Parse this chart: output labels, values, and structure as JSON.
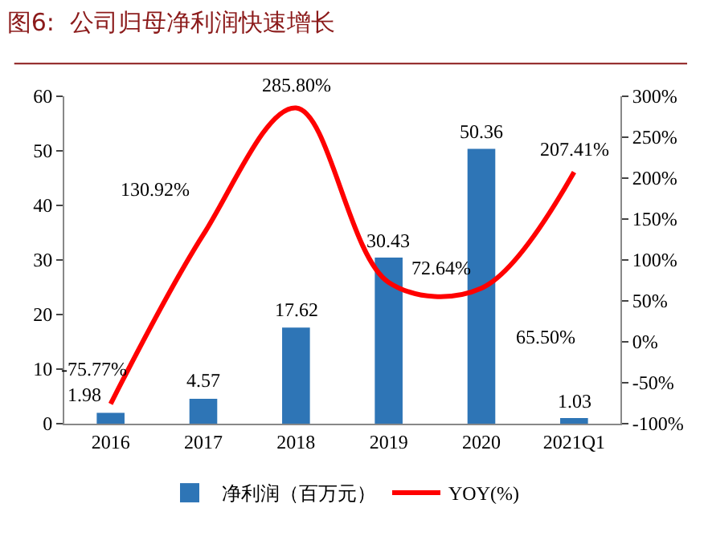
{
  "chart_data": {
    "type": "bar",
    "title": "图6:  公司归母净利润快速增长",
    "categories": [
      "2016",
      "2017",
      "2018",
      "2019",
      "2020",
      "2021Q1"
    ],
    "series": [
      {
        "name": "净利润（百万元）",
        "color": "#2e75b6",
        "values": [
          1.98,
          4.57,
          17.62,
          30.43,
          50.36,
          1.03
        ],
        "value_labels": [
          "1.98",
          "4.57",
          "17.62",
          "30.43",
          "50.36",
          "1.03"
        ]
      },
      {
        "name": "YOY(%)",
        "type": "line",
        "axis": "y2",
        "color": "#ff0000",
        "values": [
          -75.77,
          130.92,
          285.8,
          72.64,
          65.5,
          207.41
        ],
        "value_labels": [
          "-75.77%",
          "130.92%",
          "285.80%",
          "72.64%",
          "65.50%",
          "207.41%"
        ]
      }
    ],
    "ylim": [
      0,
      60
    ],
    "yticks": [
      0,
      10,
      20,
      30,
      40,
      50,
      60
    ],
    "y2lim": [
      -100,
      300
    ],
    "y2ticks": [
      {
        "value": -100,
        "label": "-100%"
      },
      {
        "value": -50,
        "label": "-50%"
      },
      {
        "value": 0,
        "label": "0%"
      },
      {
        "value": 50,
        "label": "50%"
      },
      {
        "value": 100,
        "label": "100%"
      },
      {
        "value": 150,
        "label": "150%"
      },
      {
        "value": 200,
        "label": "200%"
      },
      {
        "value": 250,
        "label": "250%"
      },
      {
        "value": 300,
        "label": "300%"
      }
    ],
    "grid": false,
    "legend": "bottom",
    "marker": "none"
  }
}
